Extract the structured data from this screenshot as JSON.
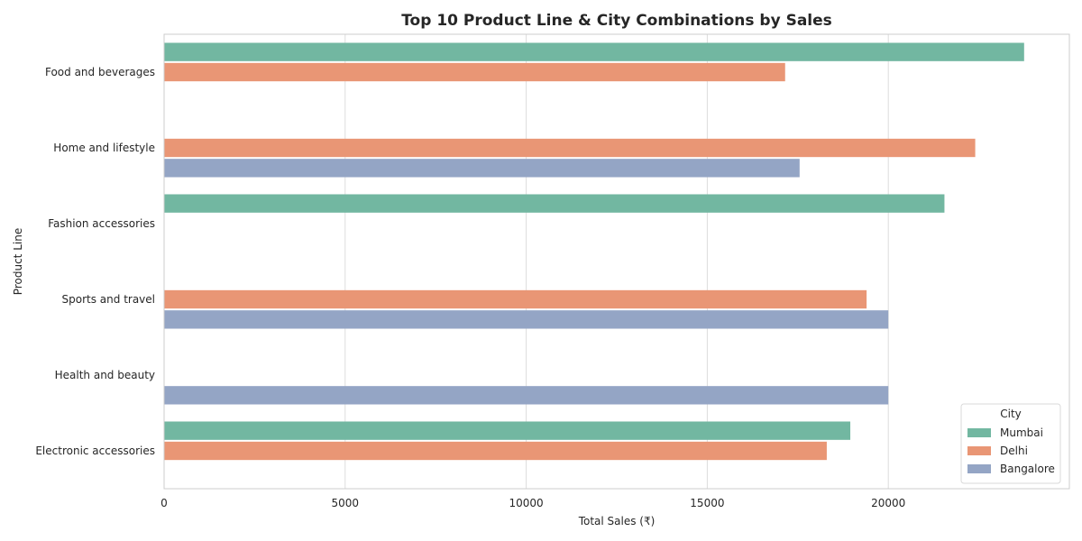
{
  "chart_data": {
    "type": "bar",
    "orientation": "horizontal",
    "title": "Top 10 Product Line & City Combinations by Sales",
    "xlabel": "Total Sales (₹)",
    "ylabel": "Product Line",
    "xlim": [
      0,
      25000
    ],
    "xticks": [
      0,
      5000,
      10000,
      15000,
      20000
    ],
    "grid": true,
    "legend_position": "bottom-right",
    "legend_title": "City",
    "categories": [
      "Food and beverages",
      "Home and lifestyle",
      "Fashion accessories",
      "Sports and travel",
      "Health and beauty",
      "Electronic accessories"
    ],
    "series": [
      {
        "name": "Mumbai",
        "color": "#72b7a1",
        "values": [
          23750,
          null,
          21550,
          null,
          null,
          18950
        ]
      },
      {
        "name": "Delhi",
        "color": "#e99675",
        "values": [
          17150,
          22400,
          null,
          19400,
          null,
          18300
        ]
      },
      {
        "name": "Bangalore",
        "color": "#94a5c5",
        "values": [
          null,
          17550,
          null,
          20000,
          20000,
          null
        ]
      }
    ]
  }
}
